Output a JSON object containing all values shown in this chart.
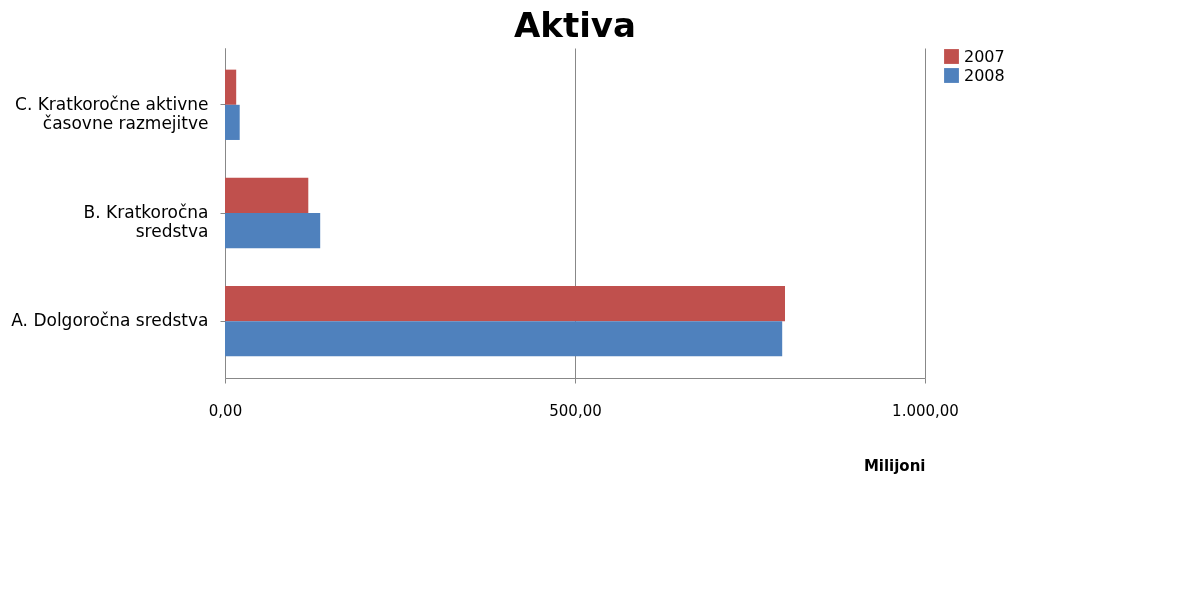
{
  "chart_data": {
    "type": "bar",
    "orientation": "horizontal",
    "title": "Aktiva",
    "xlabel": "Milijoni",
    "categories": [
      "C. Kratkoročne aktivne časovne razmejitve",
      "B. Kratkoročna sredstva",
      "A. Dolgoročna sredstva"
    ],
    "series": [
      {
        "name": "2007",
        "color": "#c0504d",
        "values": [
          16,
          119,
          800
        ]
      },
      {
        "name": "2008",
        "color": "#4f81bd",
        "values": [
          21,
          136,
          796
        ]
      }
    ],
    "xlim": [
      0,
      1000
    ],
    "xticks": [
      {
        "value": 0,
        "label": "0,00"
      },
      {
        "value": 500,
        "label": "500,00"
      },
      {
        "value": 1000,
        "label": "1.000,00"
      }
    ],
    "grid": "x",
    "legend": "right"
  }
}
